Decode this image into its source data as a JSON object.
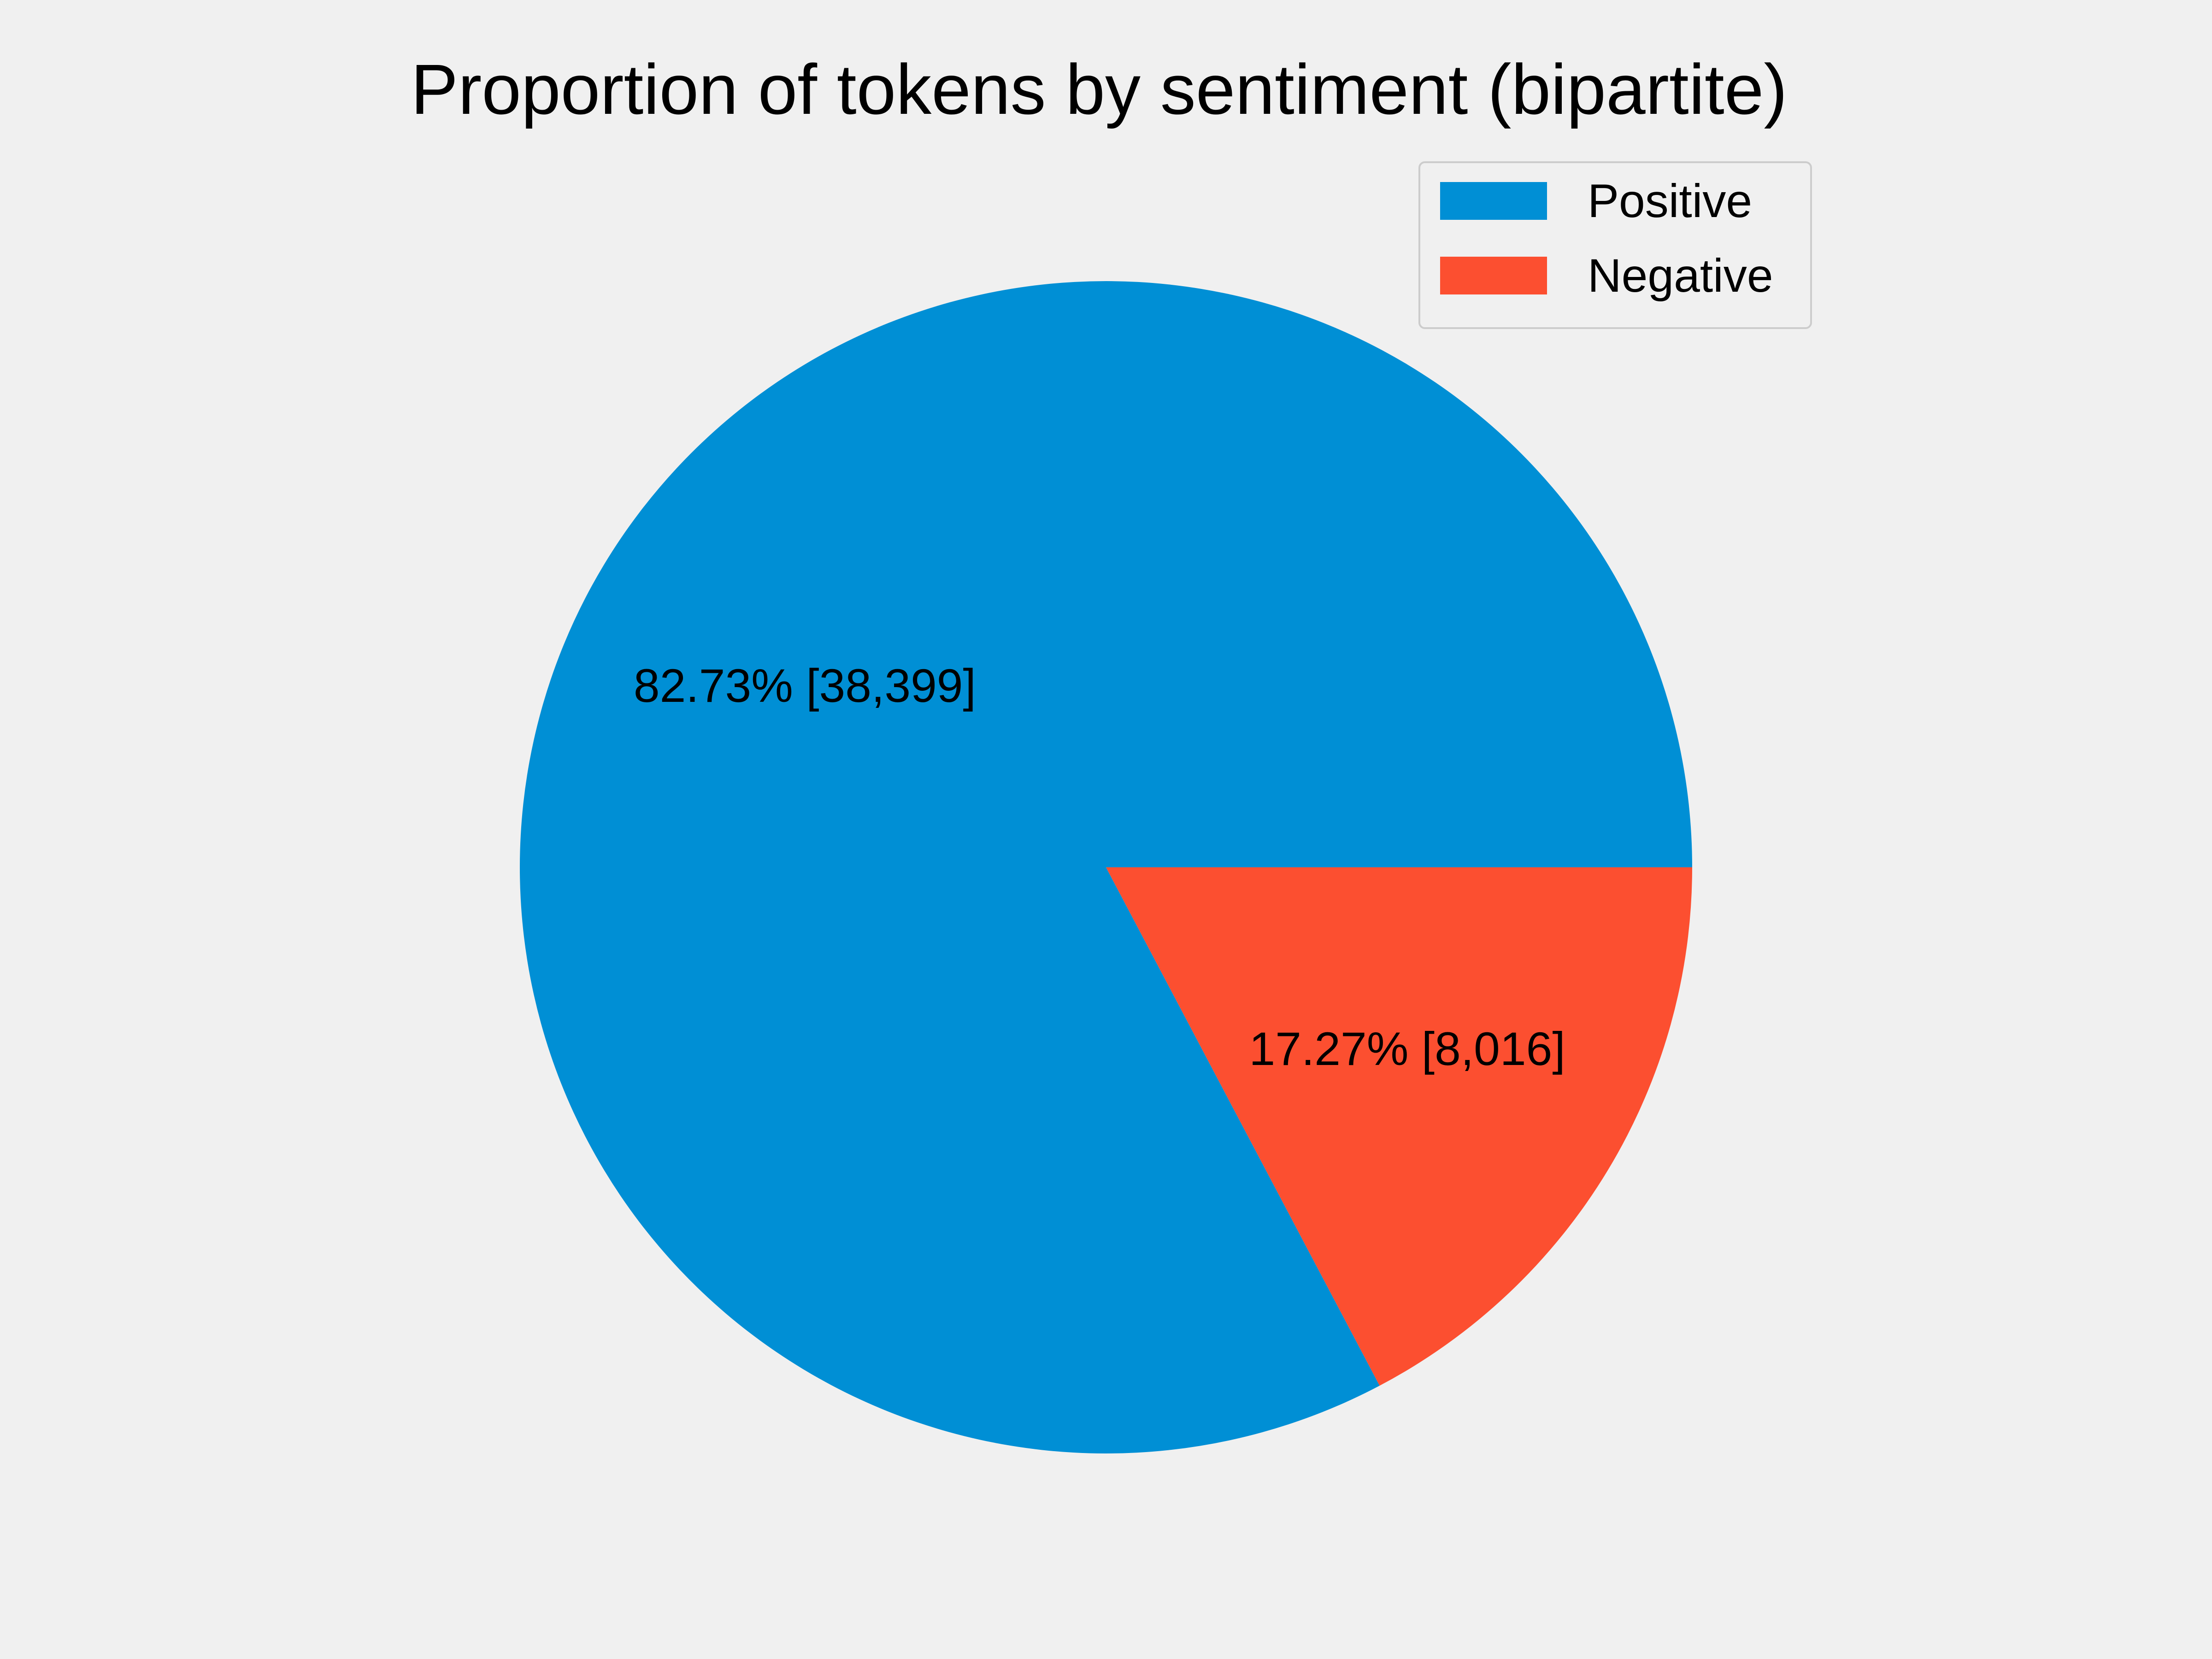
{
  "chart_data": {
    "type": "pie",
    "title": "Proportion of tokens by sentiment (bipartite)",
    "slices": [
      {
        "name": "Positive",
        "value": 38399,
        "label": "82.73% [38,399]",
        "color": "#008fd5"
      },
      {
        "name": "Negative",
        "value": 8016,
        "label": "17.27% [8,016]",
        "color": "#fc4f30"
      }
    ],
    "legend": {
      "placement": "top-right",
      "entries": [
        "Positive",
        "Negative"
      ]
    }
  },
  "colors": {
    "background": "#f0f0f0",
    "legend_border": "#cccccc"
  }
}
